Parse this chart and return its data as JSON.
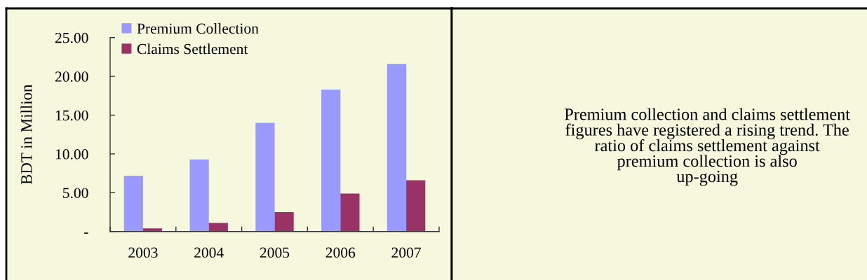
{
  "chart_data": [
    {
      "type": "bar",
      "ylabel": "BDT in Million",
      "categories": [
        "2003",
        "2004",
        "2005",
        "2006",
        "2007"
      ],
      "series": [
        {
          "name": "Premium Collection",
          "color": "#9999ff",
          "values": [
            7.2,
            9.3,
            14.0,
            18.3,
            21.6
          ]
        },
        {
          "name": "Claims Settlement",
          "color": "#993366",
          "values": [
            0.4,
            1.1,
            2.5,
            4.9,
            6.6
          ]
        }
      ],
      "ylim": [
        0,
        25
      ],
      "yticks": [
        {
          "value": 0,
          "label": "-"
        },
        {
          "value": 5,
          "label": "5.00"
        },
        {
          "value": 10,
          "label": "10.00"
        },
        {
          "value": 15,
          "label": "15.00"
        },
        {
          "value": 20,
          "label": "20.00"
        },
        {
          "value": 25,
          "label": "25.00"
        }
      ],
      "legend": "top left"
    },
    {
      "type": "other",
      "annotations": [
        "Premium collection and claims settlement\nfigures have registered a rising trend. The\nratio of claims settlement against\npremium collection is also\nup-going"
      ]
    }
  ]
}
